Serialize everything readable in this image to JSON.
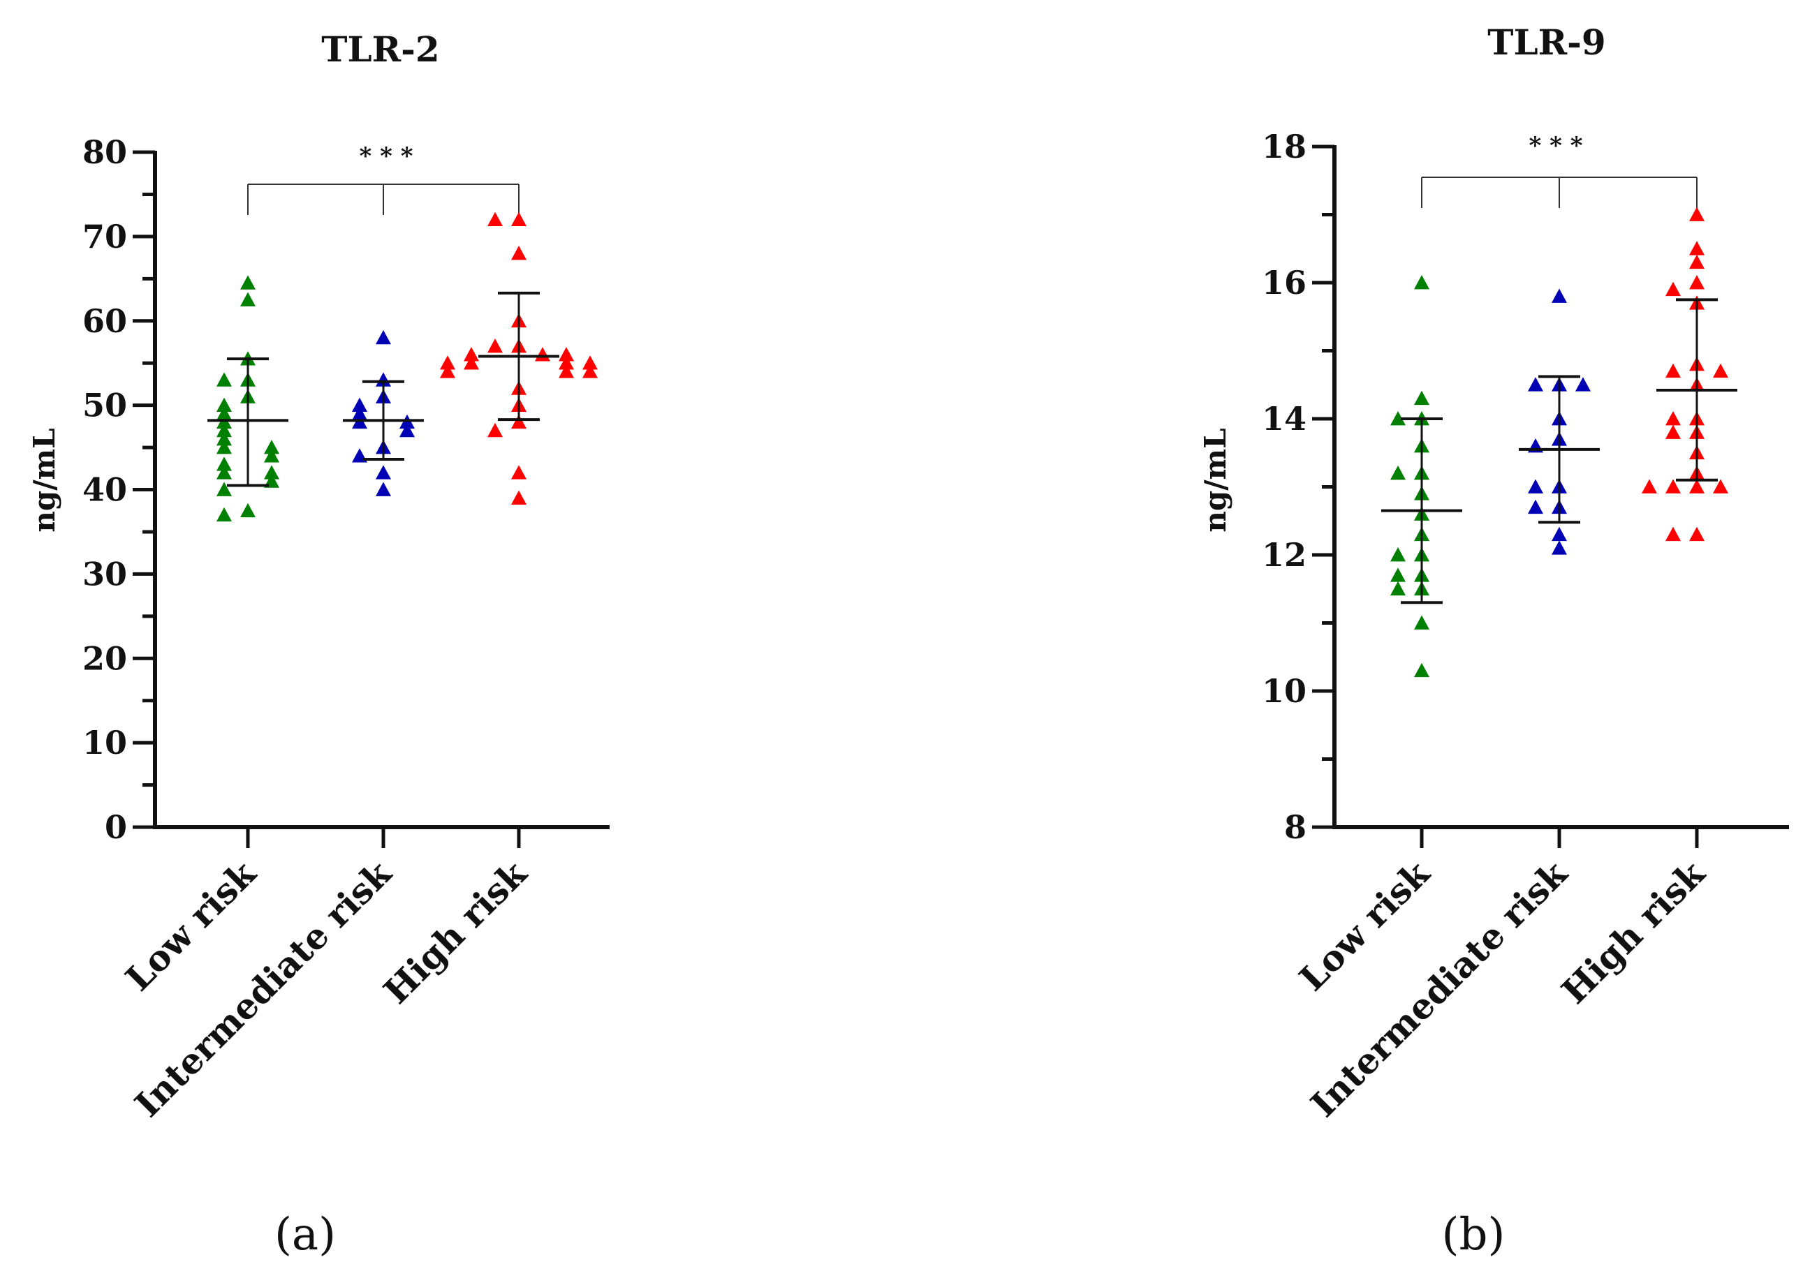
{
  "chart_data": [
    {
      "type": "scatter",
      "panel": "(a)",
      "title": "TLR-2",
      "ylabel": "ng/mL",
      "xlabel": "",
      "ylim": [
        0,
        80
      ],
      "yticks": [
        0,
        10,
        20,
        30,
        40,
        50,
        60,
        70,
        80
      ],
      "categories": [
        "Low risk",
        "Intermediate risk",
        "High risk"
      ],
      "significance": "* * *",
      "series": [
        {
          "name": "Low risk",
          "color": "#008000",
          "values": [
            64.5,
            62.5,
            55.5,
            53.0,
            53.0,
            51.0,
            50.0,
            49.0,
            48.0,
            47.0,
            46.0,
            45.0,
            45.0,
            44.0,
            43.0,
            42.0,
            42.0,
            41.0,
            40.0,
            37.5,
            37.0
          ],
          "mean": 48.2,
          "sd_upper": 55.5,
          "sd_lower": 40.5
        },
        {
          "name": "Intermediate risk",
          "color": "#0000b4",
          "values": [
            58.0,
            53.0,
            51.0,
            50.0,
            49.0,
            48.0,
            48.0,
            47.0,
            45.0,
            44.0,
            42.0,
            40.0
          ],
          "mean": 48.2,
          "sd_upper": 52.8,
          "sd_lower": 43.6
        },
        {
          "name": "High risk",
          "color": "#ff0000",
          "values": [
            72.0,
            72.0,
            68.0,
            60.0,
            57.0,
            57.0,
            56.0,
            56.0,
            56.0,
            55.0,
            55.0,
            55.0,
            55.0,
            54.0,
            54.0,
            54.0,
            52.0,
            50.0,
            48.0,
            47.0,
            42.0,
            39.0
          ],
          "mean": 55.8,
          "sd_upper": 63.3,
          "sd_lower": 48.3
        }
      ]
    },
    {
      "type": "scatter",
      "panel": "(b)",
      "title": "TLR-9",
      "ylabel": "ng/mL",
      "xlabel": "",
      "ylim": [
        8,
        18
      ],
      "yticks": [
        8,
        10,
        12,
        14,
        16,
        18
      ],
      "categories": [
        "Low risk",
        "Intermediate risk",
        "High risk"
      ],
      "significance": "* * *",
      "series": [
        {
          "name": "Low risk",
          "color": "#008000",
          "values": [
            16.0,
            14.3,
            14.0,
            14.0,
            13.6,
            13.2,
            13.2,
            12.9,
            12.6,
            12.3,
            12.0,
            12.0,
            11.7,
            11.7,
            11.5,
            11.5,
            11.0,
            10.3
          ],
          "mean": 12.65,
          "sd_upper": 14.0,
          "sd_lower": 11.3
        },
        {
          "name": "Intermediate risk",
          "color": "#0000b4",
          "values": [
            15.8,
            14.5,
            14.5,
            14.5,
            14.0,
            13.7,
            13.6,
            13.0,
            13.0,
            12.7,
            12.7,
            12.3,
            12.1
          ],
          "mean": 13.55,
          "sd_upper": 14.62,
          "sd_lower": 12.48
        },
        {
          "name": "High risk",
          "color": "#ff0000",
          "values": [
            17.0,
            16.5,
            16.3,
            16.0,
            15.9,
            15.7,
            14.8,
            14.7,
            14.7,
            14.5,
            14.0,
            14.0,
            13.8,
            13.8,
            13.5,
            13.2,
            13.0,
            13.0,
            13.0,
            13.0,
            12.3,
            12.3
          ],
          "mean": 14.42,
          "sd_upper": 15.75,
          "sd_lower": 13.1
        }
      ]
    }
  ]
}
